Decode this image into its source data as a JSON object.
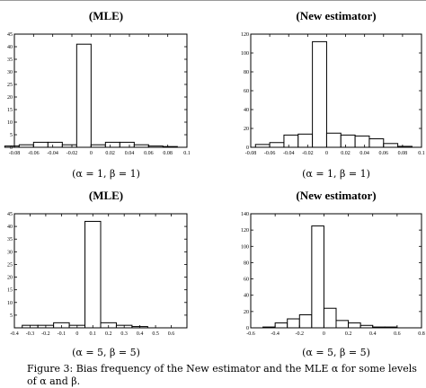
{
  "caption": {
    "line1": "Figure 3: Bias frequency of the New estimator and the MLE α for some levels",
    "line2": "of α and β."
  },
  "chart_data": [
    {
      "type": "bar",
      "title": "(MLE)",
      "xlabel": "(α = 1, β = 1)",
      "xlim": [
        -0.08,
        0.1
      ],
      "ylim": [
        0,
        45
      ],
      "xticks": [
        "-0.08",
        "-0.06",
        "-0.04",
        "-0.02",
        "0",
        "0.02",
        "0.04",
        "0.06",
        "0.08",
        "0.1"
      ],
      "yticks": [
        "0",
        "5",
        "10",
        "15",
        "20",
        "25",
        "30",
        "35",
        "40",
        "45"
      ],
      "bin_edges": [
        -0.09,
        -0.075,
        -0.06,
        -0.045,
        -0.03,
        -0.015,
        0.0,
        0.015,
        0.03,
        0.045,
        0.06,
        0.075,
        0.09
      ],
      "values": [
        0.5,
        1,
        2,
        2,
        1,
        41,
        1,
        2,
        2,
        1,
        0.5,
        0.3
      ]
    },
    {
      "type": "bar",
      "title": "(New estimator)",
      "xlabel": "(α = 1, β = 1)",
      "xlim": [
        -0.08,
        0.1
      ],
      "ylim": [
        0,
        120
      ],
      "xticks": [
        "-0.08",
        "-0.06",
        "-0.04",
        "-0.02",
        "0",
        "0.02",
        "0.04",
        "0.06",
        "0.08",
        "0.1"
      ],
      "yticks": [
        "0",
        "20",
        "40",
        "60",
        "80",
        "100",
        "120"
      ],
      "bin_edges": [
        -0.075,
        -0.06,
        -0.045,
        -0.03,
        -0.015,
        0.0,
        0.015,
        0.03,
        0.045,
        0.06,
        0.075,
        0.09
      ],
      "values": [
        3,
        5,
        13,
        14,
        112,
        15,
        13,
        12,
        9,
        4,
        1
      ]
    },
    {
      "type": "bar",
      "title": "(MLE)",
      "xlabel": "(α = 5, β = 5)",
      "xlim": [
        -0.4,
        0.7
      ],
      "ylim": [
        0,
        45
      ],
      "xticks": [
        "-0.4",
        "-0.3",
        "-0.2",
        "-0.1",
        "0",
        "0.1",
        "0.2",
        "0.3",
        "0.4",
        "0.5",
        "0.6"
      ],
      "yticks": [
        "5",
        "10",
        "15",
        "20",
        "25",
        "30",
        "35",
        "40",
        "45"
      ],
      "bin_edges": [
        -0.35,
        -0.25,
        -0.15,
        -0.05,
        0.05,
        0.15,
        0.25,
        0.35,
        0.45
      ],
      "values": [
        1,
        1,
        2,
        1,
        42,
        2,
        1,
        0.5
      ]
    },
    {
      "type": "bar",
      "title": "(New estimator)",
      "xlabel": "(α = 5, β = 5)",
      "xlim": [
        -0.6,
        0.8
      ],
      "ylim": [
        0,
        140
      ],
      "xticks": [
        "-0.6",
        "-0.4",
        "-0.2",
        "0",
        "0.2",
        "0.4",
        "0.6",
        "0.8"
      ],
      "yticks": [
        "0",
        "20",
        "40",
        "60",
        "80",
        "100",
        "120",
        "140"
      ],
      "bin_edges": [
        -0.5,
        -0.4,
        -0.3,
        -0.2,
        -0.1,
        0.0,
        0.1,
        0.2,
        0.3,
        0.4,
        0.5,
        0.6
      ],
      "values": [
        1,
        6,
        11,
        16,
        125,
        24,
        9,
        6,
        3,
        1,
        1
      ]
    }
  ]
}
